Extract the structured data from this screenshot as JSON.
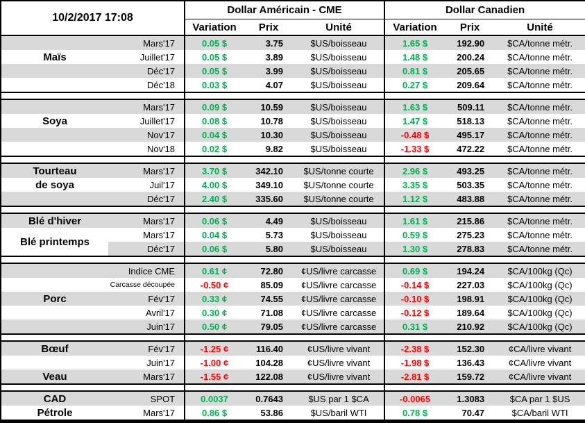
{
  "header": {
    "datetime": "10/2/2017 17:08",
    "us_title": "Dollar Américain - CME",
    "ca_title": "Dollar Canadien",
    "columns": {
      "variation": "Variation",
      "prix": "Prix",
      "unite": "Unité"
    }
  },
  "colors": {
    "positive": "#00B050",
    "negative": "#FF0000",
    "row_shade": "#D9D9D9",
    "border": "#000000"
  },
  "chart_data": {
    "type": "table",
    "title": "10/2/2017 17:08",
    "column_groups": [
      "Dollar Américain - CME",
      "Dollar Canadien"
    ],
    "columns": [
      "Variation",
      "Prix",
      "Unité",
      "Variation",
      "Prix",
      "Unité"
    ],
    "groups": [
      {
        "name": "Maïs",
        "rows": [
          {
            "commodity": "",
            "month": "Mars'17",
            "us_variation": "0.05 $",
            "us_trend": "up",
            "us_price": "3.75",
            "us_unit": "$US/boisseau",
            "ca_variation": "1.65 $",
            "ca_trend": "up",
            "ca_price": "192.90",
            "ca_unit": "$CA/tonne métr.",
            "shaded": true
          },
          {
            "commodity": "Maïs",
            "month": "Juillet'17",
            "us_variation": "0.05 $",
            "us_trend": "up",
            "us_price": "3.89",
            "us_unit": "$US/boisseau",
            "ca_variation": "1.48 $",
            "ca_trend": "up",
            "ca_price": "200.24",
            "ca_unit": "$CA/tonne métr.",
            "shaded": false
          },
          {
            "commodity": "",
            "month": "Déc'17",
            "us_variation": "0.05 $",
            "us_trend": "up",
            "us_price": "3.99",
            "us_unit": "$US/boisseau",
            "ca_variation": "0.81 $",
            "ca_trend": "up",
            "ca_price": "205.65",
            "ca_unit": "$CA/tonne métr.",
            "shaded": true
          },
          {
            "commodity": "",
            "month": "Déc'18",
            "us_variation": "0.03 $",
            "us_trend": "up",
            "us_price": "4.07",
            "us_unit": "$US/boisseau",
            "ca_variation": "0.27 $",
            "ca_trend": "up",
            "ca_price": "209.64",
            "ca_unit": "$CA/tonne métr.",
            "shaded": false
          }
        ]
      },
      {
        "name": "Soya",
        "rows": [
          {
            "commodity": "",
            "month": "Mars'17",
            "us_variation": "0.09 $",
            "us_trend": "up",
            "us_price": "10.59",
            "us_unit": "$US/boisseau",
            "ca_variation": "1.63 $",
            "ca_trend": "up",
            "ca_price": "509.11",
            "ca_unit": "$CA/tonne métr.",
            "shaded": true
          },
          {
            "commodity": "Soya",
            "month": "Juillet'17",
            "us_variation": "0.08 $",
            "us_trend": "up",
            "us_price": "10.78",
            "us_unit": "$US/boisseau",
            "ca_variation": "1.47 $",
            "ca_trend": "up",
            "ca_price": "518.13",
            "ca_unit": "$CA/tonne métr.",
            "shaded": false
          },
          {
            "commodity": "",
            "month": "Nov'17",
            "us_variation": "0.04 $",
            "us_trend": "up",
            "us_price": "10.30",
            "us_unit": "$US/boisseau",
            "ca_variation": "-0.48 $",
            "ca_trend": "down",
            "ca_price": "495.17",
            "ca_unit": "$CA/tonne métr.",
            "shaded": true
          },
          {
            "commodity": "",
            "month": "Nov'18",
            "us_variation": "0.02 $",
            "us_trend": "up",
            "us_price": "9.82",
            "us_unit": "$US/boisseau",
            "ca_variation": "-1.33 $",
            "ca_trend": "down",
            "ca_price": "472.22",
            "ca_unit": "$CA/tonne métr.",
            "shaded": false
          }
        ]
      },
      {
        "name": "Tourteau de soya",
        "rows": [
          {
            "commodity": "Tourteau",
            "month": "Mars'17",
            "us_variation": "3.70 $",
            "us_trend": "up",
            "us_price": "342.10",
            "us_unit": "$US/tonne courte",
            "ca_variation": "2.96 $",
            "ca_trend": "up",
            "ca_price": "493.25",
            "ca_unit": "$CA/tonne métr.",
            "shaded": true
          },
          {
            "commodity": "de soya",
            "month": "Juil'17",
            "us_variation": "4.00 $",
            "us_trend": "up",
            "us_price": "349.10",
            "us_unit": "$US/tonne courte",
            "ca_variation": "3.35 $",
            "ca_trend": "up",
            "ca_price": "503.35",
            "ca_unit": "$CA/tonne métr.",
            "shaded": false
          },
          {
            "commodity": "",
            "month": "Déc'17",
            "us_variation": "2.40 $",
            "us_trend": "up",
            "us_price": "335.60",
            "us_unit": "$US/tonne courte",
            "ca_variation": "1.12 $",
            "ca_trend": "up",
            "ca_price": "483.88",
            "ca_unit": "$CA/tonne métr.",
            "shaded": true
          }
        ]
      },
      {
        "name": "Blé d'hiver / Blé printemps",
        "rows": [
          {
            "commodity": "Blé d'hiver",
            "month": "Mars'17",
            "us_variation": "0.06 $",
            "us_trend": "up",
            "us_price": "4.49",
            "us_unit": "$US/boisseau",
            "ca_variation": "1.61 $",
            "ca_trend": "up",
            "ca_price": "215.86",
            "ca_unit": "$CA/tonne métr.",
            "shaded": true
          },
          {
            "commodity": "Blé printemps",
            "rowspan": 2,
            "month": "Mars'17",
            "us_variation": "0.04 $",
            "us_trend": "up",
            "us_price": "5.73",
            "us_unit": "$US/boisseau",
            "ca_variation": "0.59 $",
            "ca_trend": "up",
            "ca_price": "275.23",
            "ca_unit": "$CA/tonne métr.",
            "shaded": false
          },
          {
            "commodity": null,
            "month": "Déc'17",
            "us_variation": "0.06 $",
            "us_trend": "up",
            "us_price": "5.80",
            "us_unit": "$US/boisseau",
            "ca_variation": "1.30 $",
            "ca_trend": "up",
            "ca_price": "278.83",
            "ca_unit": "$CA/tonne métr.",
            "shaded": true
          }
        ]
      },
      {
        "name": "Porc",
        "rows": [
          {
            "commodity": "",
            "month": "Indice CME",
            "us_variation": "0.61 ¢",
            "us_trend": "up",
            "us_price": "72.80",
            "us_unit": "¢US/livre carcasse",
            "ca_variation": "0.69 $",
            "ca_trend": "up",
            "ca_price": "194.24",
            "ca_unit": "$CA/100kg (Qc)",
            "shaded": true
          },
          {
            "commodity": "",
            "month": "Carcasse découpée",
            "month_small": true,
            "us_variation": "-0.50 ¢",
            "us_trend": "down",
            "us_price": "85.09",
            "us_unit": "¢US/livre carcasse",
            "ca_variation": "-0.14 $",
            "ca_trend": "down",
            "ca_price": "227.03",
            "ca_unit": "$CA/100kg (Qc)",
            "shaded": false
          },
          {
            "commodity": "Porc",
            "month": "Fév'17",
            "us_variation": "0.33 ¢",
            "us_trend": "up",
            "us_price": "74.55",
            "us_unit": "¢US/livre carcasse",
            "ca_variation": "-0.10 $",
            "ca_trend": "down",
            "ca_price": "198.91",
            "ca_unit": "$CA/100kg (Qc)",
            "shaded": true
          },
          {
            "commodity": "",
            "month": "Avril'17",
            "us_variation": "0.30 ¢",
            "us_trend": "up",
            "us_price": "71.08",
            "us_unit": "¢US/livre carcasse",
            "ca_variation": "-0.12 $",
            "ca_trend": "down",
            "ca_price": "189.64",
            "ca_unit": "$CA/100kg (Qc)",
            "shaded": false
          },
          {
            "commodity": "",
            "month": "Juin'17",
            "us_variation": "0.50 ¢",
            "us_trend": "up",
            "us_price": "79.05",
            "us_unit": "¢US/livre carcasse",
            "ca_variation": "0.31 $",
            "ca_trend": "up",
            "ca_price": "210.92",
            "ca_unit": "$CA/100kg (Qc)",
            "shaded": true
          }
        ]
      },
      {
        "name": "Bœuf / Veau",
        "rows": [
          {
            "commodity": "Bœuf",
            "month": "Fév'17",
            "us_variation": "-1.25 ¢",
            "us_trend": "down",
            "us_price": "116.40",
            "us_unit": "¢US/livre vivant",
            "ca_variation": "-2.38 $",
            "ca_trend": "down",
            "ca_price": "152.30",
            "ca_unit": "¢CA/livre vivant",
            "shaded": true
          },
          {
            "commodity": "",
            "month": "Juin'17",
            "us_variation": "-1.00 ¢",
            "us_trend": "down",
            "us_price": "104.28",
            "us_unit": "¢US/livre vivant",
            "ca_variation": "-1.98 $",
            "ca_trend": "down",
            "ca_price": "136.43",
            "ca_unit": "¢CA/livre vivant",
            "shaded": false
          },
          {
            "commodity": "Veau",
            "month": "Mars'17",
            "us_variation": "-1.55 ¢",
            "us_trend": "down",
            "us_price": "122.08",
            "us_unit": "¢US/livre vivant",
            "ca_variation": "-2.81 $",
            "ca_trend": "down",
            "ca_price": "159.72",
            "ca_unit": "¢CA/livre vivant",
            "shaded": true
          }
        ]
      },
      {
        "name": "CAD / Pétrole",
        "rows": [
          {
            "commodity": "CAD",
            "month": "SPOT",
            "us_variation": "0.0037",
            "us_trend": "up",
            "us_price": "0.7643",
            "us_unit": "$US par 1 $CA",
            "ca_variation": "-0.0065",
            "ca_trend": "down",
            "ca_price": "1.3083",
            "ca_unit": "$CA par 1 $US",
            "shaded": true
          },
          {
            "commodity": "Pétrole",
            "month": "Mars'17",
            "us_variation": "0.86 $",
            "us_trend": "up",
            "us_price": "53.86",
            "us_unit": "$US/baril WTI",
            "ca_variation": "0.78 $",
            "ca_trend": "up",
            "ca_price": "70.47",
            "ca_unit": "$CA/baril WTI",
            "shaded": false
          }
        ]
      }
    ]
  }
}
